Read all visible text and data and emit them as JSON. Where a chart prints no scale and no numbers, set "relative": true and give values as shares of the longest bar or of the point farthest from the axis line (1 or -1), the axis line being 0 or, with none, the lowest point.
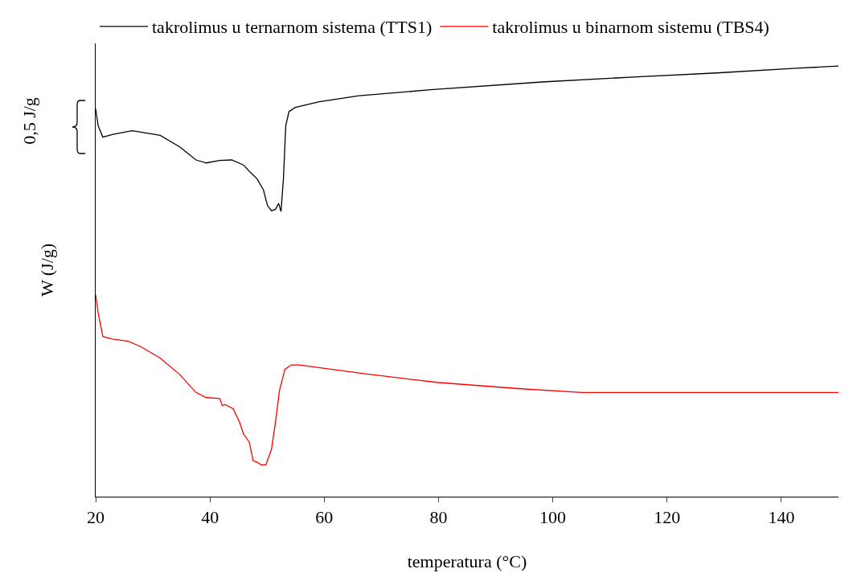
{
  "chart_data": {
    "type": "line",
    "relative": true,
    "xlabel": "temperatura (°C)",
    "ylabel": "W (J/g)",
    "annotations": [
      "0,5 J/g"
    ],
    "legend": "top",
    "grid": false,
    "marker": "none",
    "line_style": "solid",
    "xlim": [
      20,
      150
    ],
    "xticks": [
      20,
      40,
      60,
      80,
      100,
      120,
      140
    ],
    "series": [
      {
        "name": "takrolimus u ternarnom sistema (TTS1)",
        "color": "#000000",
        "x": [
          20,
          20.42,
          21.25,
          22.92,
          26.4,
          31.28,
          34.76,
          37.55,
          39.35,
          41.72,
          43.81,
          45.89,
          46.87,
          48.26,
          49.37,
          50.07,
          50.77,
          51.46,
          52.02,
          52.44,
          52.86,
          53.27,
          53.83,
          54.94,
          59.12,
          66.08,
          78.61,
          98.1,
          114.8,
          128.7,
          142.65,
          150
        ],
        "values": [
          0.901,
          0.862,
          0.835,
          0.841,
          0.85,
          0.839,
          0.812,
          0.782,
          0.775,
          0.781,
          0.782,
          0.77,
          0.756,
          0.738,
          0.712,
          0.676,
          0.664,
          0.667,
          0.681,
          0.662,
          0.738,
          0.862,
          0.894,
          0.904,
          0.917,
          0.931,
          0.945,
          0.963,
          0.975,
          0.984,
          0.995,
          1
        ]
      },
      {
        "name": "takrolimus u binarnom sistemu (TBS4)",
        "color": "#ff0000",
        "x": [
          20,
          20.42,
          21.25,
          22.92,
          25.71,
          27.8,
          31.28,
          34.76,
          37.55,
          39.35,
          41.72,
          42.14,
          42.69,
          44.08,
          45.2,
          45.89,
          46.87,
          47.57,
          48.26,
          48.96,
          49.79,
          50.77,
          51.46,
          52.16,
          53.13,
          54.25,
          55.64,
          66.08,
          80,
          93.9,
          105.06,
          150
        ],
        "values": [
          0.469,
          0.428,
          0.372,
          0.366,
          0.361,
          0.349,
          0.322,
          0.283,
          0.242,
          0.23,
          0.228,
          0.212,
          0.214,
          0.204,
          0.172,
          0.145,
          0.127,
          0.083,
          0.08,
          0.074,
          0.074,
          0.11,
          0.172,
          0.246,
          0.296,
          0.306,
          0.306,
          0.287,
          0.265,
          0.251,
          0.242,
          0.242
        ]
      }
    ]
  }
}
